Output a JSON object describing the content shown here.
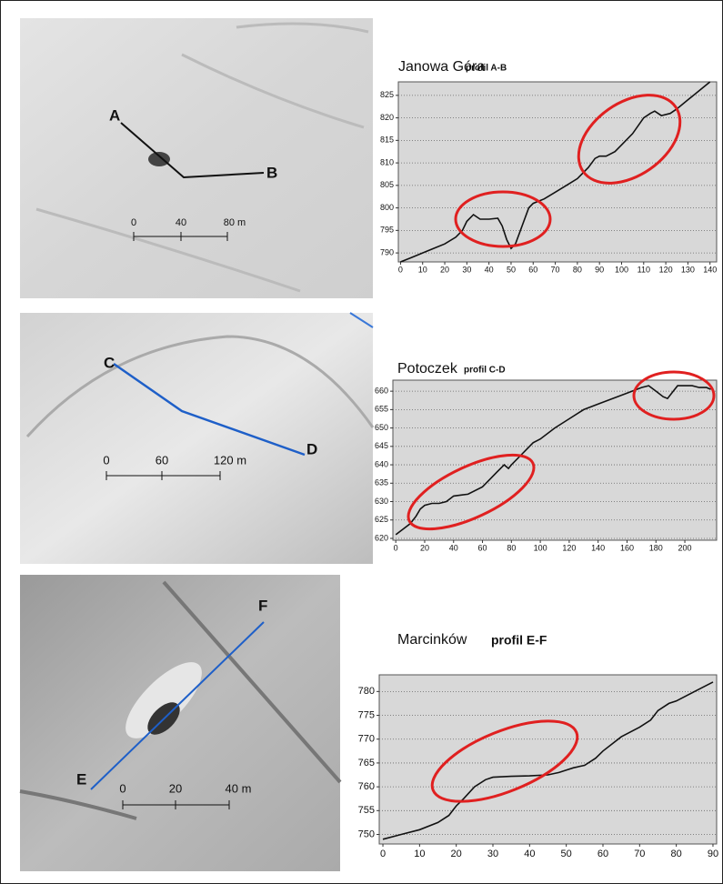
{
  "chart_data": [
    {
      "type": "line",
      "title": "Janowa Góra",
      "subtitle": "profil A-B",
      "x": [
        0,
        5,
        10,
        15,
        20,
        25,
        28,
        30,
        33,
        36,
        40,
        44,
        46,
        48,
        50,
        52,
        55,
        58,
        60,
        65,
        70,
        75,
        80,
        85,
        88,
        90,
        93,
        97,
        100,
        105,
        110,
        113,
        115,
        118,
        122,
        125,
        130,
        135,
        140
      ],
      "series": [
        {
          "color": "#111111",
          "values": [
            788,
            789,
            790,
            791,
            792,
            793.5,
            795,
            797,
            798.5,
            797.5,
            797.5,
            797.7,
            796,
            793,
            791,
            792,
            796,
            800,
            801,
            802,
            803.5,
            805,
            806.5,
            809,
            811,
            811.5,
            811.5,
            812.5,
            814,
            816.5,
            820,
            821,
            821.5,
            820.5,
            821,
            822,
            824,
            826,
            828
          ]
        }
      ],
      "xlim": [
        -1,
        143
      ],
      "xticks": [
        0,
        10,
        20,
        30,
        40,
        50,
        60,
        70,
        80,
        90,
        100,
        110,
        120,
        130,
        140
      ],
      "ylim": [
        788,
        828
      ],
      "yticks": [
        790,
        795,
        800,
        805,
        810,
        815,
        820,
        825
      ],
      "grid": true
    },
    {
      "type": "line",
      "title": "Potoczek",
      "subtitle": "profil C-D",
      "x": [
        0,
        5,
        10,
        14,
        17,
        20,
        25,
        30,
        35,
        40,
        50,
        60,
        65,
        70,
        75,
        78,
        80,
        85,
        90,
        95,
        100,
        110,
        120,
        130,
        140,
        150,
        160,
        170,
        175,
        180,
        185,
        188,
        192,
        195,
        205,
        210,
        215,
        218
      ],
      "series": [
        {
          "color": "#111111",
          "values": [
            621,
            622.5,
            624,
            626,
            628,
            629,
            629.5,
            629.5,
            630,
            631.5,
            632,
            634,
            636,
            638,
            640,
            639,
            640,
            642,
            644,
            646,
            647,
            650,
            652.5,
            655,
            656.5,
            658,
            659.5,
            661,
            661.5,
            660,
            658.5,
            658,
            660,
            661.5,
            661.5,
            661,
            661,
            660.5
          ]
        }
      ],
      "xlim": [
        -2,
        222
      ],
      "xticks": [
        0,
        20,
        40,
        60,
        80,
        100,
        120,
        140,
        160,
        180,
        200
      ],
      "ylim": [
        619.5,
        663
      ],
      "yticks": [
        620,
        625,
        630,
        635,
        640,
        645,
        650,
        655,
        660
      ],
      "grid": true
    },
    {
      "type": "line",
      "title": "Marcinków",
      "subtitle": "profil E-F",
      "x": [
        0,
        5,
        10,
        15,
        18,
        20,
        22,
        25,
        28,
        30,
        35,
        40,
        45,
        48,
        50,
        52,
        55,
        58,
        60,
        65,
        70,
        73,
        75,
        78,
        80,
        85,
        90
      ],
      "series": [
        {
          "color": "#111111",
          "values": [
            749,
            750,
            751,
            752.5,
            754,
            756,
            757.5,
            760,
            761.5,
            762,
            762.2,
            762.3,
            762.5,
            763,
            763.5,
            764,
            764.5,
            766,
            767.5,
            770.5,
            772.5,
            774,
            776,
            777.5,
            778,
            780,
            782
          ]
        }
      ],
      "xlim": [
        -1,
        91
      ],
      "xticks": [
        0,
        10,
        20,
        30,
        40,
        50,
        60,
        70,
        80,
        90
      ],
      "ylim": [
        748,
        783.5
      ],
      "yticks": [
        750,
        755,
        760,
        765,
        770,
        775,
        780
      ],
      "grid": true
    }
  ],
  "maps": [
    {
      "points": [
        "A",
        "B"
      ],
      "scale": [
        "0",
        "40",
        "80 m"
      ]
    },
    {
      "points": [
        "C",
        "D"
      ],
      "scale": [
        "0",
        "60",
        "120 m"
      ]
    },
    {
      "points": [
        "E",
        "F"
      ],
      "scale": [
        "0",
        "20",
        "40 m"
      ]
    }
  ]
}
